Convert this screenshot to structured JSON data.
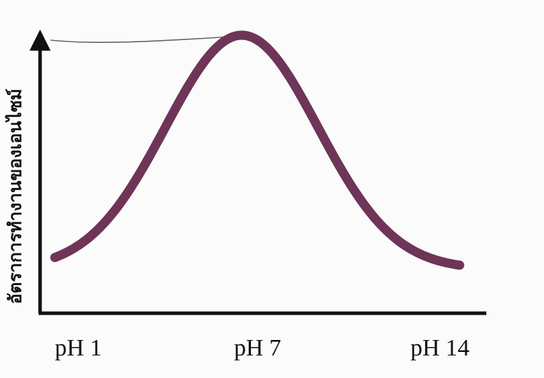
{
  "chart_data": {
    "type": "line",
    "title": "",
    "xlabel": "",
    "ylabel": "อัตราการทำงานของเอนไซม์",
    "categories": [
      "pH 1",
      "pH 7",
      "pH 14"
    ],
    "x": [
      1,
      7,
      14
    ],
    "xlim": [
      1,
      14
    ],
    "ylim": [
      0,
      1
    ],
    "grid": false,
    "legend": "none",
    "series": [
      {
        "type": "gaussian",
        "peak_x": 7,
        "peak_value": 1.0,
        "baseline_value": 0.13,
        "color": "#6e3558"
      }
    ],
    "reference_line": {
      "value": 1.0,
      "color": "#666666"
    },
    "colors": {
      "axis": "#111111",
      "curve": "#6e3558",
      "reference": "#666666"
    }
  }
}
